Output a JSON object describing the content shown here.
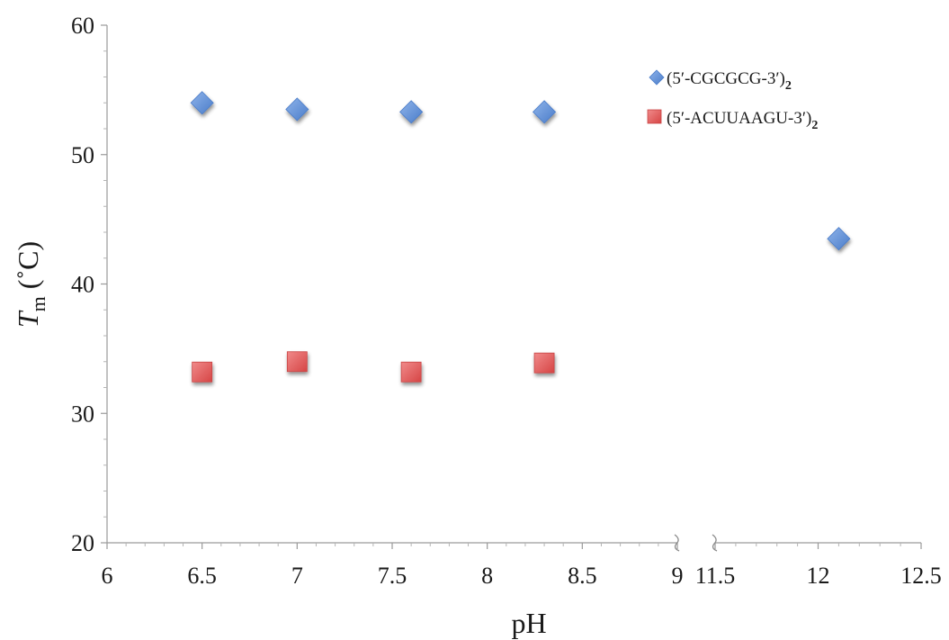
{
  "chart_data": {
    "type": "scatter",
    "title": "",
    "xlabel": "pH",
    "ylabel": {
      "symbol": "T",
      "subscript": "m",
      "unit": "(˚C)"
    },
    "ylim": [
      20,
      60
    ],
    "yticks": [
      "20",
      "30",
      "40",
      "50",
      "60"
    ],
    "x_axis_broken": true,
    "x_segments": [
      {
        "range": [
          6,
          9
        ],
        "ticks": [
          "6",
          "6.5",
          "7",
          "7.5",
          "8",
          "8.5",
          "9"
        ]
      },
      {
        "range": [
          11.5,
          12.5
        ],
        "ticks": [
          "11.5",
          "12",
          "12.5"
        ]
      }
    ],
    "grid": false,
    "legend_position": "top-right",
    "series": [
      {
        "name": "(5′-CGCGCG-3′)",
        "name_subscript": "2",
        "marker": "diamond",
        "color": "#5b8fd8",
        "points": [
          {
            "x": 6.5,
            "y": 54.0
          },
          {
            "x": 7.0,
            "y": 53.5
          },
          {
            "x": 7.6,
            "y": 53.3
          },
          {
            "x": 8.3,
            "y": 53.3
          },
          {
            "x": 12.1,
            "y": 43.5
          }
        ]
      },
      {
        "name": "(5′-ACUUAAGU-3′)",
        "name_subscript": "2",
        "marker": "square",
        "color": "#e85b5b",
        "points": [
          {
            "x": 6.5,
            "y": 33.2
          },
          {
            "x": 7.0,
            "y": 34.0
          },
          {
            "x": 7.6,
            "y": 33.2
          },
          {
            "x": 8.3,
            "y": 33.9
          }
        ]
      }
    ]
  }
}
